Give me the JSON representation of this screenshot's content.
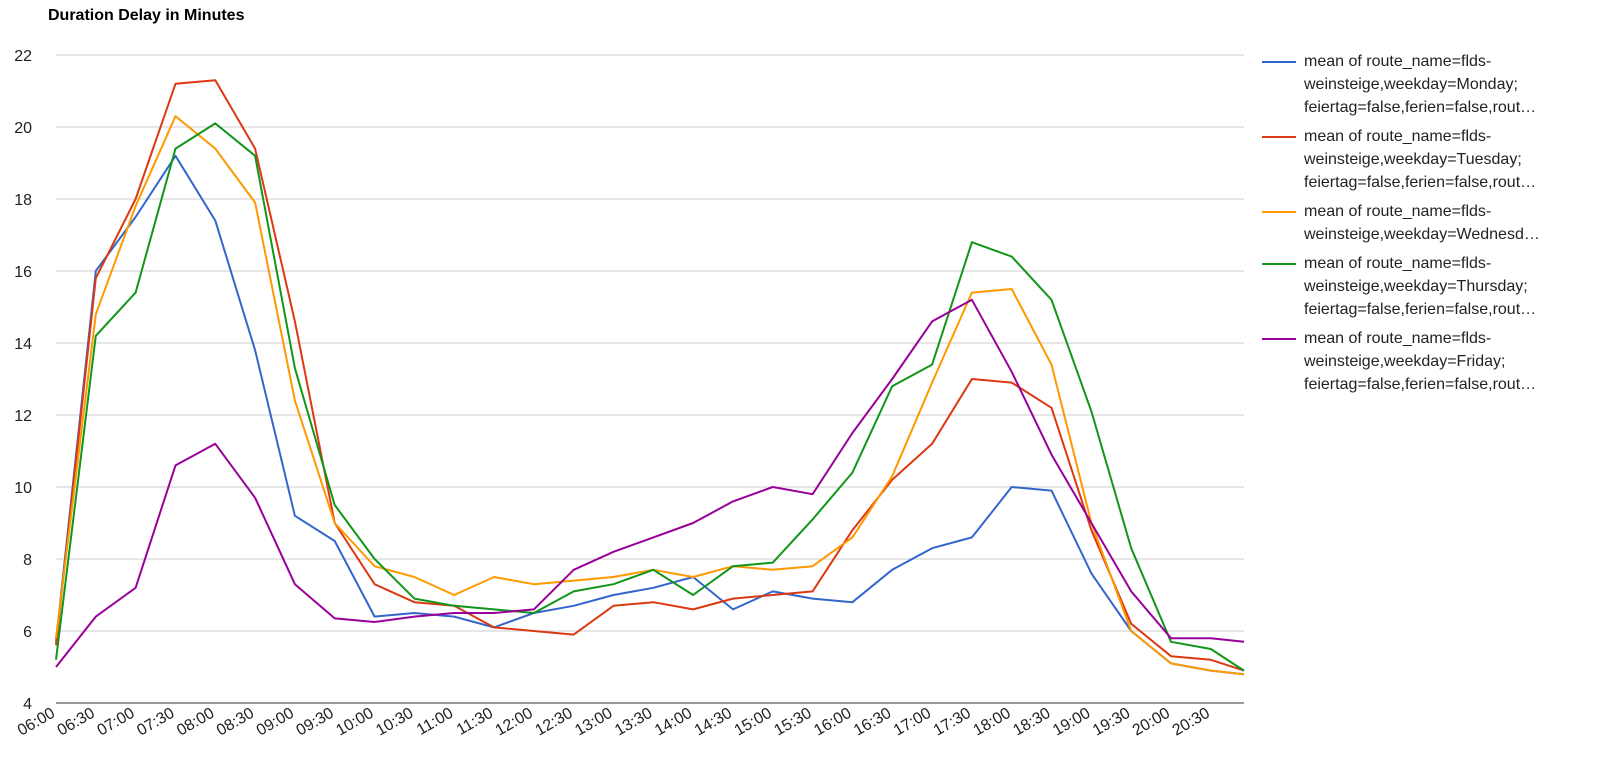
{
  "chart_data": {
    "type": "line",
    "title": "Duration Delay in Minutes",
    "xlabel": "",
    "ylabel": "",
    "ylim": [
      4,
      22
    ],
    "yticks": [
      4,
      6,
      8,
      10,
      12,
      14,
      16,
      18,
      20,
      22
    ],
    "xtick_labels": [
      "06:00",
      "06:30",
      "07:00",
      "07:30",
      "08:00",
      "08:30",
      "09:00",
      "09:30",
      "10:00",
      "10:30",
      "11:00",
      "11:30",
      "12:00",
      "12:30",
      "13:00",
      "13:30",
      "14:00",
      "14:30",
      "15:00",
      "15:30",
      "16:00",
      "16:30",
      "17:00",
      "17:30",
      "18:00",
      "18:30",
      "19:00",
      "19:30",
      "20:00",
      "20:30"
    ],
    "grid": true,
    "legend_position": "right",
    "x": [
      "06:00",
      "06:30",
      "07:00",
      "07:30",
      "08:00",
      "08:30",
      "09:00",
      "09:30",
      "10:00",
      "10:30",
      "11:00",
      "11:30",
      "12:00",
      "12:30",
      "13:00",
      "13:30",
      "14:00",
      "14:30",
      "15:00",
      "15:30",
      "16:00",
      "16:30",
      "17:00",
      "17:30",
      "18:00",
      "18:30",
      "19:00",
      "19:30",
      "20:00",
      "20:30",
      "20:55"
    ],
    "series": [
      {
        "name": "mean of route_name=flds-weinsteige,weekday=Monday; feiertag=false,ferien=false,rout…",
        "legend_lines": [
          "mean of route_name=flds-",
          "weinsteige,weekday=Monday;",
          "feiertag=false,ferien=false,rout…"
        ],
        "color": "#3366cc",
        "values": [
          5.7,
          16.0,
          17.5,
          19.2,
          17.4,
          13.8,
          9.2,
          8.5,
          6.4,
          6.5,
          6.4,
          6.1,
          6.5,
          6.7,
          7.0,
          7.2,
          7.5,
          6.6,
          7.1,
          6.9,
          6.8,
          7.7,
          8.3,
          8.6,
          10.0,
          9.9,
          7.6,
          6.0,
          5.1,
          4.9,
          4.8
        ]
      },
      {
        "name": "mean of route_name=flds-weinsteige,weekday=Tuesday; feiertag=false,ferien=false,rout…",
        "legend_lines": [
          "mean of route_name=flds-",
          "weinsteige,weekday=Tuesday;",
          "feiertag=false,ferien=false,rout…"
        ],
        "color": "#dc3912",
        "values": [
          5.6,
          15.8,
          18.0,
          21.2,
          21.3,
          19.4,
          14.6,
          9.0,
          7.3,
          6.8,
          6.7,
          6.1,
          6.0,
          5.9,
          6.7,
          6.8,
          6.6,
          6.9,
          7.0,
          7.1,
          8.8,
          10.2,
          11.2,
          13.0,
          12.9,
          12.2,
          8.8,
          6.2,
          5.3,
          5.2,
          4.9
        ]
      },
      {
        "name": "mean of route_name=flds-weinsteige,weekday=Wednesday; feiertag=false,ferien=false,rout…",
        "legend_lines": [
          "mean of route_name=flds-",
          "weinsteige,weekday=Wednesd…"
        ],
        "color": "#ff9900",
        "values": [
          5.8,
          14.8,
          17.8,
          20.3,
          19.4,
          17.9,
          12.4,
          9.0,
          7.8,
          7.5,
          7.0,
          7.5,
          7.3,
          7.4,
          7.5,
          7.7,
          7.5,
          7.8,
          7.7,
          7.8,
          8.6,
          10.3,
          12.9,
          15.4,
          15.5,
          13.4,
          9.0,
          6.0,
          5.1,
          4.9,
          4.8
        ]
      },
      {
        "name": "mean of route_name=flds-weinsteige,weekday=Thursday; feiertag=false,ferien=false,rout…",
        "legend_lines": [
          "mean of route_name=flds-",
          "weinsteige,weekday=Thursday;",
          "feiertag=false,ferien=false,rout…"
        ],
        "color": "#109618",
        "values": [
          5.2,
          14.2,
          15.4,
          19.4,
          20.1,
          19.2,
          13.3,
          9.5,
          8.0,
          6.9,
          6.7,
          6.6,
          6.5,
          7.1,
          7.3,
          7.7,
          7.0,
          7.8,
          7.9,
          9.1,
          10.4,
          12.8,
          13.4,
          16.8,
          16.4,
          15.2,
          12.1,
          8.3,
          5.7,
          5.5,
          4.9
        ]
      },
      {
        "name": "mean of route_name=flds-weinsteige,weekday=Friday; feiertag=false,ferien=false,rout…",
        "legend_lines": [
          "mean of route_name=flds-",
          "weinsteige,weekday=Friday;",
          "feiertag=false,ferien=false,rout…"
        ],
        "color": "#990099",
        "values": [
          5.0,
          6.4,
          7.2,
          10.6,
          11.2,
          9.7,
          7.3,
          6.35,
          6.25,
          6.4,
          6.5,
          6.5,
          6.6,
          7.7,
          8.2,
          8.6,
          9.0,
          9.6,
          10.0,
          9.8,
          11.5,
          13.0,
          14.6,
          15.2,
          13.2,
          10.9,
          9.0,
          7.1,
          5.8,
          5.8,
          5.7
        ]
      }
    ]
  }
}
